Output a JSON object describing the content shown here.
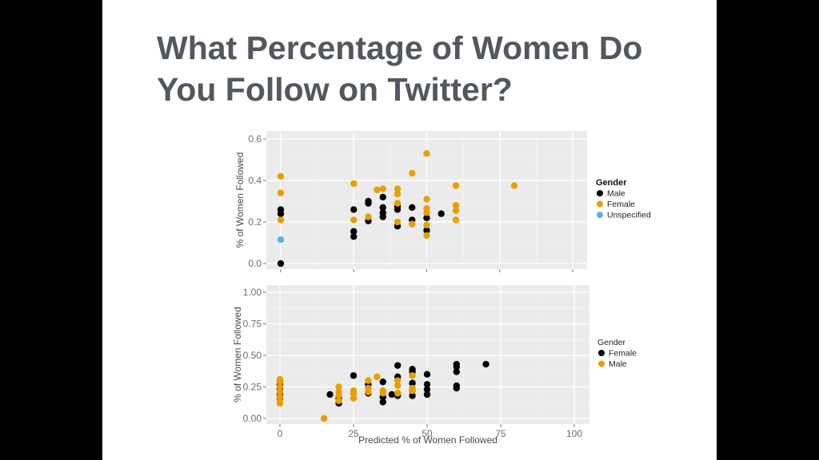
{
  "slide": {
    "title": "What Percentage of Women Do You Follow on Twitter?"
  },
  "chart_data": [
    {
      "type": "scatter",
      "title": "",
      "xlabel": "",
      "ylabel": "% of Women Followed",
      "xlim": [
        0,
        100
      ],
      "ylim": [
        0,
        0.6
      ],
      "xticks": [
        0,
        25,
        50,
        75,
        100
      ],
      "yticks": [
        "0.0",
        "0.2",
        "0.4",
        "0.6"
      ],
      "ytick_values": [
        0,
        0.2,
        0.4,
        0.6
      ],
      "show_xtick_labels": false,
      "grid": true,
      "legend": {
        "title": "Gender",
        "position": "right"
      },
      "series": [
        {
          "name": "Male",
          "color": "#000000",
          "points": [
            [
              0,
              0.26
            ],
            [
              0,
              0.24
            ],
            [
              0,
              0.0
            ],
            [
              25,
              0.26
            ],
            [
              25,
              0.155
            ],
            [
              25,
              0.13
            ],
            [
              30,
              0.3
            ],
            [
              30,
              0.29
            ],
            [
              30,
              0.205
            ],
            [
              35,
              0.32
            ],
            [
              35,
              0.27
            ],
            [
              35,
              0.245
            ],
            [
              35,
              0.225
            ],
            [
              40,
              0.275
            ],
            [
              40,
              0.26
            ],
            [
              40,
              0.18
            ],
            [
              45,
              0.27
            ],
            [
              45,
              0.21
            ],
            [
              50,
              0.22
            ],
            [
              50,
              0.16
            ],
            [
              55,
              0.24
            ]
          ]
        },
        {
          "name": "Female",
          "color": "#E69F00",
          "points": [
            [
              0,
              0.42
            ],
            [
              0,
              0.34
            ],
            [
              0,
              0.21
            ],
            [
              25,
              0.385
            ],
            [
              25,
              0.21
            ],
            [
              30,
              0.225
            ],
            [
              33,
              0.355
            ],
            [
              35,
              0.36
            ],
            [
              40,
              0.36
            ],
            [
              40,
              0.335
            ],
            [
              40,
              0.29
            ],
            [
              40,
              0.2
            ],
            [
              45,
              0.435
            ],
            [
              45,
              0.19
            ],
            [
              50,
              0.53
            ],
            [
              50,
              0.31
            ],
            [
              50,
              0.265
            ],
            [
              50,
              0.245
            ],
            [
              50,
              0.185
            ],
            [
              50,
              0.135
            ],
            [
              60,
              0.375
            ],
            [
              60,
              0.28
            ],
            [
              60,
              0.255
            ],
            [
              60,
              0.21
            ],
            [
              80,
              0.375
            ]
          ]
        },
        {
          "name": "Unspecified",
          "color": "#56B4E9",
          "points": [
            [
              0,
              0.115
            ]
          ]
        }
      ]
    },
    {
      "type": "scatter",
      "title": "",
      "xlabel": "Predicted % of Women Followed",
      "ylabel": "% of Women Followed",
      "xlim": [
        0,
        100
      ],
      "ylim": [
        0,
        1
      ],
      "xticks": [
        0,
        25,
        50,
        75,
        100
      ],
      "yticks": [
        "0.00",
        "0.25",
        "0.50",
        "0.75",
        "1.00"
      ],
      "ytick_values": [
        0,
        0.25,
        0.5,
        0.75,
        1
      ],
      "show_xtick_labels": true,
      "grid": true,
      "legend": {
        "title": "Gender",
        "position": "right"
      },
      "series": [
        {
          "name": "Female",
          "color": "#000000",
          "points": [
            [
              0,
              0.3
            ],
            [
              0,
              0.27
            ],
            [
              0,
              0.24
            ],
            [
              0,
              0.2
            ],
            [
              0,
              0.18
            ],
            [
              0,
              0.16
            ],
            [
              17,
              0.19
            ],
            [
              20,
              0.16
            ],
            [
              20,
              0.12
            ],
            [
              25,
              0.34
            ],
            [
              25,
              0.2
            ],
            [
              30,
              0.27
            ],
            [
              30,
              0.2
            ],
            [
              35,
              0.29
            ],
            [
              35,
              0.17
            ],
            [
              35,
              0.13
            ],
            [
              38,
              0.19
            ],
            [
              40,
              0.42
            ],
            [
              40,
              0.33
            ],
            [
              40,
              0.2
            ],
            [
              40,
              0.18
            ],
            [
              45,
              0.39
            ],
            [
              45,
              0.37
            ],
            [
              45,
              0.28
            ],
            [
              45,
              0.22
            ],
            [
              45,
              0.18
            ],
            [
              50,
              0.35
            ],
            [
              50,
              0.27
            ],
            [
              50,
              0.23
            ],
            [
              50,
              0.19
            ],
            [
              60,
              0.43
            ],
            [
              60,
              0.41
            ],
            [
              60,
              0.37
            ],
            [
              60,
              0.26
            ],
            [
              60,
              0.24
            ],
            [
              70,
              0.43
            ]
          ]
        },
        {
          "name": "Male",
          "color": "#E69F00",
          "points": [
            [
              0,
              0.31
            ],
            [
              0,
              0.29
            ],
            [
              0,
              0.25
            ],
            [
              0,
              0.21
            ],
            [
              0,
              0.17
            ],
            [
              0,
              0.14
            ],
            [
              0,
              0.12
            ],
            [
              15,
              0.0
            ],
            [
              20,
              0.25
            ],
            [
              20,
              0.21
            ],
            [
              20,
              0.18
            ],
            [
              20,
              0.14
            ],
            [
              25,
              0.22
            ],
            [
              25,
              0.2
            ],
            [
              25,
              0.16
            ],
            [
              30,
              0.3
            ],
            [
              30,
              0.24
            ],
            [
              30,
              0.21
            ],
            [
              33,
              0.33
            ],
            [
              35,
              0.22
            ],
            [
              35,
              0.2
            ],
            [
              40,
              0.3
            ],
            [
              40,
              0.26
            ],
            [
              40,
              0.2
            ],
            [
              45,
              0.34
            ],
            [
              45,
              0.24
            ],
            [
              45,
              0.22
            ]
          ]
        }
      ]
    }
  ]
}
